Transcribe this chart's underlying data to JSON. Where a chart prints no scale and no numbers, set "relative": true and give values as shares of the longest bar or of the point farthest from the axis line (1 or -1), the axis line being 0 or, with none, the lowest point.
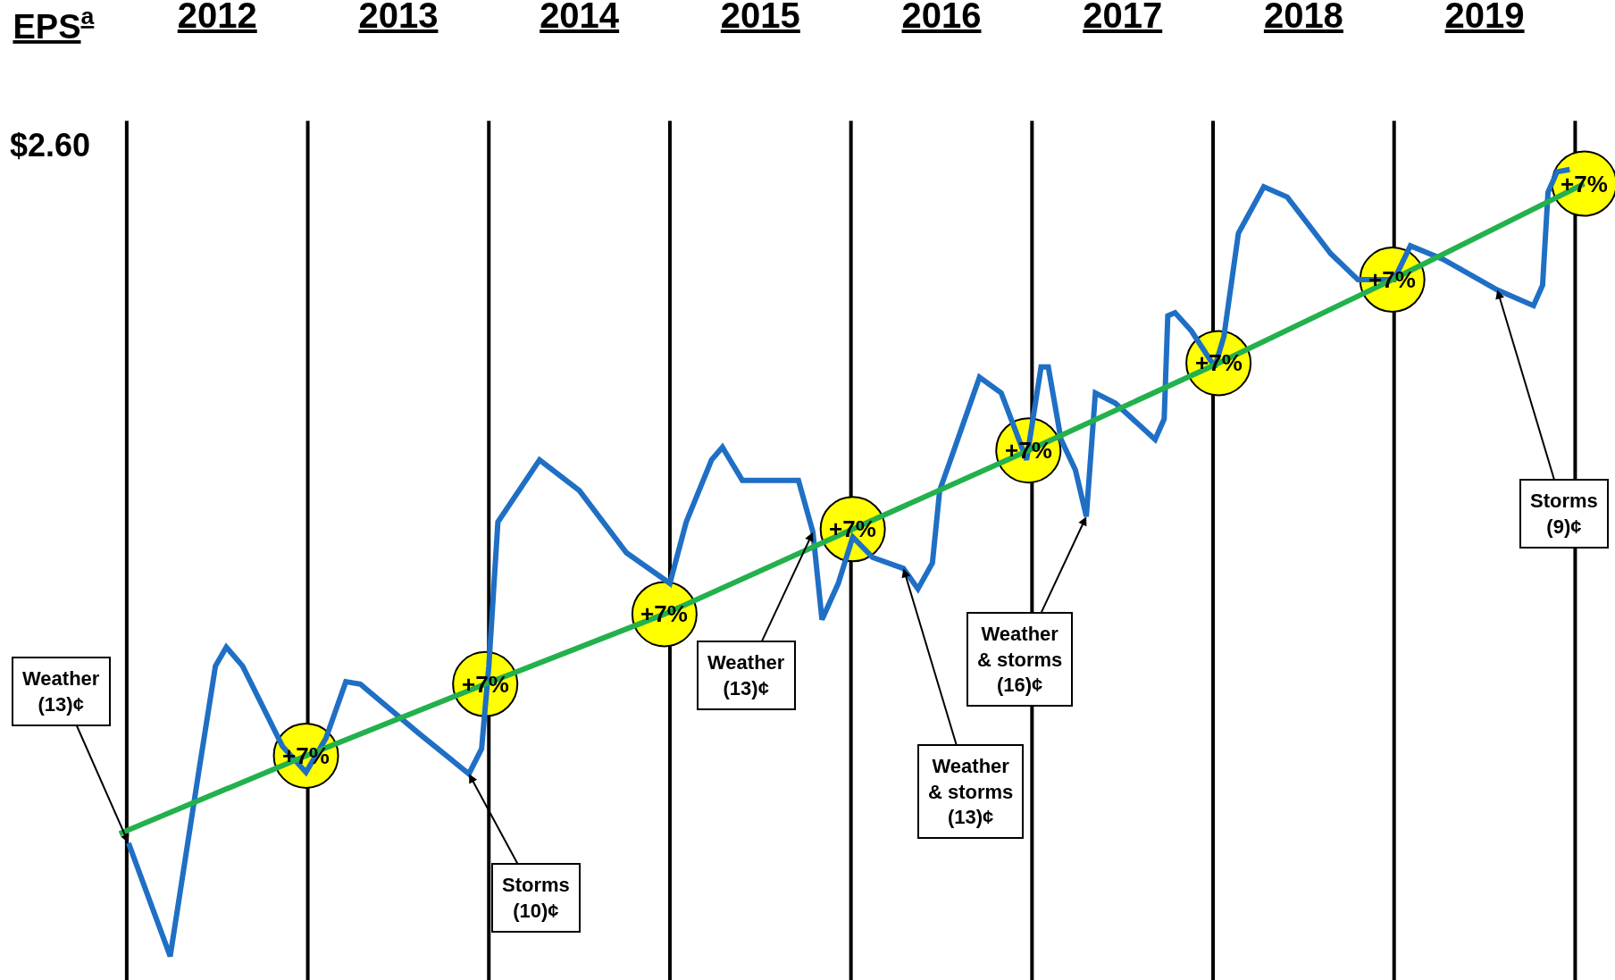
{
  "chart_data": {
    "type": "line",
    "title": "EPS$^{a}$",
    "relative": true,
    "grid": false,
    "xlim": [
      2011.3,
      2020.22
    ],
    "xticks": [
      {
        "value": 2012.5,
        "label": "2012"
      },
      {
        "value": 2013.5,
        "label": "2013"
      },
      {
        "value": 2014.5,
        "label": "2014"
      },
      {
        "value": 2015.5,
        "label": "2015"
      },
      {
        "value": 2016.5,
        "label": "2016"
      },
      {
        "value": 2017.5,
        "label": "2017"
      },
      {
        "value": 2018.5,
        "label": "2018"
      },
      {
        "value": 2019.5,
        "label": "2019"
      }
    ],
    "ref_lines": [
      {
        "axis": "x",
        "value": 2012,
        "color": "#000000"
      },
      {
        "axis": "x",
        "value": 2013,
        "color": "#000000"
      },
      {
        "axis": "x",
        "value": 2014,
        "color": "#000000"
      },
      {
        "axis": "x",
        "value": 2015,
        "color": "#000000"
      },
      {
        "axis": "x",
        "value": 2016,
        "color": "#000000"
      },
      {
        "axis": "x",
        "value": 2017,
        "color": "#000000"
      },
      {
        "axis": "x",
        "value": 2018,
        "color": "#000000"
      },
      {
        "axis": "x",
        "value": 2019,
        "color": "#000000"
      },
      {
        "axis": "x",
        "value": 2020,
        "color": "#000000"
      }
    ],
    "series": [
      {
        "color": "#1f6fc5",
        "marker": "none",
        "x": [
          2012.01,
          2012.24,
          2012.4,
          2012.49,
          2012.55,
          2012.64,
          2012.86,
          2012.99,
          2013.1,
          2013.21,
          2013.29,
          2013.61,
          2013.89,
          2013.96,
          2014.0,
          2014.05,
          2014.28,
          2014.5,
          2014.76,
          2015.0,
          2015.09,
          2015.23,
          2015.29,
          2015.4,
          2015.71,
          2015.79,
          2015.84,
          2015.93,
          2016.01,
          2016.12,
          2016.29,
          2016.37,
          2016.45,
          2016.49,
          2016.57,
          2016.71,
          2016.83,
          2016.97,
          2017.05,
          2017.09,
          2017.16,
          2017.24,
          2017.3,
          2017.35,
          2017.46,
          2017.68,
          2017.73,
          2017.75,
          2017.79,
          2017.88,
          2018.01,
          2018.06,
          2018.14,
          2018.28,
          2018.41,
          2018.65,
          2018.8,
          2019.0,
          2019.09,
          2019.27,
          2019.57,
          2019.77,
          2019.82,
          2019.85,
          2019.9,
          2019.97
        ],
        "values": [
          0.144,
          0,
          0.238,
          0.369,
          0.393,
          0.369,
          0.267,
          0.234,
          0.277,
          0.349,
          0.346,
          0.284,
          0.232,
          0.264,
          0.369,
          0.552,
          0.631,
          0.592,
          0.513,
          0.474,
          0.552,
          0.631,
          0.647,
          0.605,
          0.605,
          0.539,
          0.428,
          0.474,
          0.533,
          0.507,
          0.493,
          0.467,
          0.5,
          0.592,
          0.644,
          0.736,
          0.716,
          0.631,
          0.749,
          0.749,
          0.657,
          0.618,
          0.559,
          0.716,
          0.703,
          0.657,
          0.683,
          0.814,
          0.818,
          0.795,
          0.749,
          0.788,
          0.919,
          0.978,
          0.965,
          0.893,
          0.86,
          0.86,
          0.903,
          0.886,
          0.847,
          0.827,
          0.853,
          0.971,
          0.997,
          1
        ]
      },
      {
        "color": "#22b14c",
        "marker": "none",
        "x": [
          2011.96,
          2012.99,
          2013.98,
          2014.97,
          2016.01,
          2016.98,
          2018.03,
          2018.99,
          2020.05
        ],
        "values": [
          0.156,
          0.255,
          0.346,
          0.435,
          0.543,
          0.643,
          0.754,
          0.86,
          0.982
        ]
      }
    ],
    "annotations": [
      "$2.60",
      {
        "text": "+7%",
        "x": 2012.99,
        "y": 0.255
      },
      {
        "text": "+7%",
        "x": 2013.98,
        "y": 0.346
      },
      {
        "text": "+7%",
        "x": 2014.97,
        "y": 0.435
      },
      {
        "text": "+7%",
        "x": 2016.01,
        "y": 0.543
      },
      {
        "text": "+7%",
        "x": 2016.98,
        "y": 0.643
      },
      {
        "text": "+7%",
        "x": 2018.03,
        "y": 0.754
      },
      {
        "text": "+7%",
        "x": 2018.99,
        "y": 0.86
      },
      {
        "text": "+7%",
        "x": 2020.05,
        "y": 0.982
      },
      {
        "text": "Weather\n(13)¢",
        "x": 2012.01,
        "y": 0.144
      },
      {
        "text": "Storms\n(10)¢",
        "x": 2013.89,
        "y": 0.232
      },
      {
        "text": "Weather\n(13)¢",
        "x": 2015.79,
        "y": 0.539
      },
      {
        "text": "Weather\n& storms\n(13)¢",
        "x": 2016.29,
        "y": 0.493
      },
      {
        "text": "Weather\n& storms\n(16)¢",
        "x": 2017.3,
        "y": 0.559
      },
      {
        "text": "Storms\n(9)¢",
        "x": 2019.57,
        "y": 0.847
      }
    ]
  }
}
